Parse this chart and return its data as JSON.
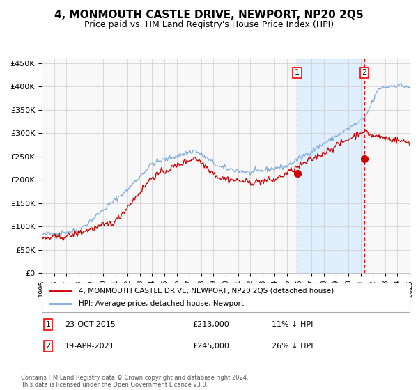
{
  "title": "4, MONMOUTH CASTLE DRIVE, NEWPORT, NP20 2QS",
  "subtitle": "Price paid vs. HM Land Registry's House Price Index (HPI)",
  "title_fontsize": 11,
  "subtitle_fontsize": 9,
  "ylim": [
    0,
    460000
  ],
  "yticks": [
    0,
    50000,
    100000,
    150000,
    200000,
    250000,
    300000,
    350000,
    400000,
    450000
  ],
  "year_start": 1995,
  "year_end": 2025,
  "hpi_color": "#7aaadd",
  "hpi_fill_color": "#ddeeff",
  "price_color": "#cc0000",
  "purchase1_year": 2015.82,
  "purchase1_price": 213000,
  "purchase2_year": 2021.3,
  "purchase2_price": 245000,
  "legend_label1": "4, MONMOUTH CASTLE DRIVE, NEWPORT, NP20 2QS (detached house)",
  "legend_label2": "HPI: Average price, detached house, Newport",
  "annotation1_label": "23-OCT-2015",
  "annotation1_price": "£213,000",
  "annotation1_pct": "11% ↓ HPI",
  "annotation2_label": "19-APR-2021",
  "annotation2_price": "£245,000",
  "annotation2_pct": "26% ↓ HPI",
  "footnote": "Contains HM Land Registry data © Crown copyright and database right 2024.\nThis data is licensed under the Open Government Licence v3.0.",
  "grid_color": "#cccccc",
  "background_color": "#ffffff",
  "plot_bg_color": "#f8f8f8"
}
